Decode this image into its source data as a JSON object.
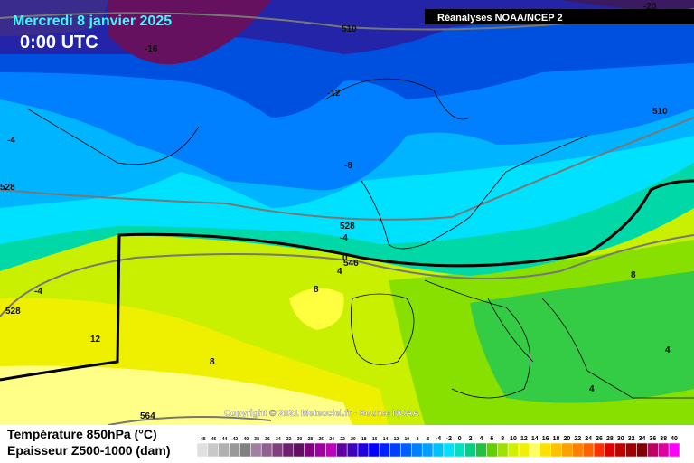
{
  "header": {
    "title": "Mercredi 8 janvier 2025",
    "time": "0:00 UTC",
    "source": "Réanalyses NOAA/NCEP 2"
  },
  "map": {
    "labels": [
      -20,
      510,
      -16,
      -12,
      510,
      -4,
      -8,
      528,
      528,
      -4,
      0,
      546,
      4,
      -4,
      8,
      8,
      528,
      12,
      8,
      4,
      4,
      564
    ],
    "copyright": "Copyright © 2021 Meteociel.fr - Source NOAA"
  },
  "legend": {
    "temperature": "Température 850hPa (°C)",
    "thickness": "Epaisseur Z500-1000 (dam)",
    "scale": [
      -48,
      -46,
      -44,
      -42,
      -40,
      -38,
      -36,
      -34,
      -32,
      -30,
      -28,
      -26,
      -24,
      -22,
      -20,
      -18,
      -16,
      -14,
      -12,
      -10,
      -8,
      -6,
      -4,
      -2,
      0,
      2,
      4,
      6,
      8,
      10,
      12,
      14,
      16,
      18,
      20,
      22,
      24,
      26,
      28,
      30,
      32,
      34,
      36,
      38,
      40
    ]
  }
}
